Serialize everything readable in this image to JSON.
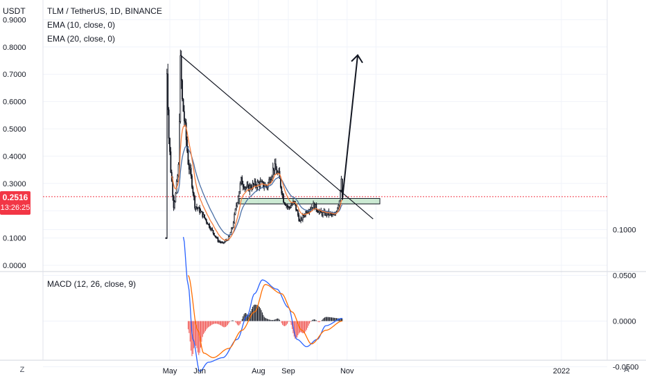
{
  "header": {
    "currency": "USDT",
    "symbol_line": "TLM / TetherUS, 1D, BINANCE",
    "ema10": "EMA (10, close, 0)",
    "ema20": "EMA (20, close, 0)",
    "macd": "MACD (12, 26, close, 9)"
  },
  "price_badge": {
    "price": "0.2516",
    "countdown": "13:26:25",
    "color": "#f23645"
  },
  "axis": {
    "price_ticks": [
      "0.9000",
      "0.8000",
      "0.7000",
      "0.6000",
      "0.5000",
      "0.4000",
      "0.3000",
      "0.1000",
      "0.0000"
    ],
    "macd_ticks": [
      "0.1000",
      "0.0500",
      "0.0000",
      "-0.0500"
    ],
    "months": [
      "May",
      "Jun",
      "Aug",
      "Sep",
      "Nov",
      "2022"
    ],
    "corner_left": "Z",
    "corner_right": "A"
  },
  "colors": {
    "up": "#26a69a",
    "down": "#ef5350",
    "candle": "#131722",
    "ema10": "#f57c3b",
    "ema20": "#4a6fa5",
    "macd_line": "#2962ff",
    "signal_line": "#ff6d00",
    "hist_pos": "#131722",
    "hist_neg": "#ef5350",
    "zone": "#8fd19e",
    "current_price_line": "#f23645"
  },
  "chart_data": [
    {
      "type": "candlestick",
      "title": "TLM / TetherUS, 1D, BINANCE",
      "ylabel": "USDT",
      "ylim": [
        0.0,
        0.93
      ],
      "x_ticks": [
        "May",
        "Jun",
        "Aug",
        "Sep",
        "Nov",
        "2022"
      ],
      "close_series": [
        {
          "x": "Apr 27",
          "y": 0.1
        },
        {
          "x": "Apr 28",
          "y": 0.72
        },
        {
          "x": "Apr 30",
          "y": 0.47
        },
        {
          "x": "May 02",
          "y": 0.35
        },
        {
          "x": "May 05",
          "y": 0.22
        },
        {
          "x": "May 07",
          "y": 0.26
        },
        {
          "x": "May 10",
          "y": 0.36
        },
        {
          "x": "May 12",
          "y": 0.74
        },
        {
          "x": "May 14",
          "y": 0.6
        },
        {
          "x": "May 17",
          "y": 0.5
        },
        {
          "x": "May 20",
          "y": 0.38
        },
        {
          "x": "May 24",
          "y": 0.3
        },
        {
          "x": "May 27",
          "y": 0.22
        },
        {
          "x": "Jun 01",
          "y": 0.2
        },
        {
          "x": "Jun 05",
          "y": 0.18
        },
        {
          "x": "Jun 10",
          "y": 0.15
        },
        {
          "x": "Jun 15",
          "y": 0.12
        },
        {
          "x": "Jun 20",
          "y": 0.09
        },
        {
          "x": "Jun 25",
          "y": 0.08
        },
        {
          "x": "Jul 01",
          "y": 0.1
        },
        {
          "x": "Jul 05",
          "y": 0.14
        },
        {
          "x": "Jul 10",
          "y": 0.24
        },
        {
          "x": "Jul 14",
          "y": 0.31
        },
        {
          "x": "Jul 20",
          "y": 0.28
        },
        {
          "x": "Jul 25",
          "y": 0.29
        },
        {
          "x": "Aug 01",
          "y": 0.3
        },
        {
          "x": "Aug 10",
          "y": 0.29
        },
        {
          "x": "Aug 17",
          "y": 0.36
        },
        {
          "x": "Aug 22",
          "y": 0.33
        },
        {
          "x": "Aug 27",
          "y": 0.24
        },
        {
          "x": "Sep 01",
          "y": 0.21
        },
        {
          "x": "Sep 07",
          "y": 0.23
        },
        {
          "x": "Sep 13",
          "y": 0.16
        },
        {
          "x": "Sep 20",
          "y": 0.2
        },
        {
          "x": "Sep 27",
          "y": 0.22
        },
        {
          "x": "Oct 05",
          "y": 0.19
        },
        {
          "x": "Oct 12",
          "y": 0.19
        },
        {
          "x": "Oct 19",
          "y": 0.18
        },
        {
          "x": "Oct 24",
          "y": 0.24
        },
        {
          "x": "Oct 26",
          "y": 0.33
        },
        {
          "x": "Oct 27",
          "y": 0.2516
        }
      ],
      "annotations": [
        {
          "type": "trendline",
          "from": {
            "x": "May 12",
            "y": 0.77
          },
          "to": {
            "x": "Nov 28",
            "y": 0.17
          }
        },
        {
          "type": "zone",
          "y_range": [
            0.225,
            0.245
          ],
          "x_range": [
            "Jul 12",
            "Dec 05"
          ]
        },
        {
          "type": "arrow",
          "from": {
            "x": "Oct 27",
            "y": 0.24
          },
          "to": {
            "x": "Nov 12",
            "y": 0.77
          }
        },
        {
          "type": "price_line",
          "y": 0.2516
        }
      ]
    },
    {
      "type": "line",
      "title": "MACD (12, 26, close, 9)",
      "ylim": [
        -0.075,
        0.11
      ],
      "series": [
        {
          "values": [
            {
              "x": "May 15",
              "y": 0.092
            },
            {
              "x": "May 20",
              "y": 0.04
            },
            {
              "x": "May 25",
              "y": -0.02
            },
            {
              "x": "Jun 01",
              "y": -0.055
            },
            {
              "x": "Jun 10",
              "y": -0.045
            },
            {
              "x": "Jun 25",
              "y": -0.04
            },
            {
              "x": "Jul 10",
              "y": -0.02
            },
            {
              "x": "Jul 20",
              "y": 0.005
            },
            {
              "x": "Jul 28",
              "y": 0.03
            },
            {
              "x": "Aug 05",
              "y": 0.045
            },
            {
              "x": "Aug 20",
              "y": 0.035
            },
            {
              "x": "Sep 01",
              "y": 0.015
            },
            {
              "x": "Sep 10",
              "y": -0.02
            },
            {
              "x": "Sep 20",
              "y": -0.028
            },
            {
              "x": "Oct 01",
              "y": -0.02
            },
            {
              "x": "Oct 10",
              "y": -0.005
            },
            {
              "x": "Oct 27",
              "y": 0.003
            }
          ]
        },
        {
          "values": [
            {
              "x": "May 20",
              "y": 0.05
            },
            {
              "x": "May 30",
              "y": -0.01
            },
            {
              "x": "Jun 05",
              "y": -0.035
            },
            {
              "x": "Jun 15",
              "y": -0.04
            },
            {
              "x": "Jul 01",
              "y": -0.03
            },
            {
              "x": "Jul 15",
              "y": -0.01
            },
            {
              "x": "Jul 28",
              "y": 0.01
            },
            {
              "x": "Aug 08",
              "y": 0.04
            },
            {
              "x": "Aug 25",
              "y": 0.03
            },
            {
              "x": "Sep 05",
              "y": 0.01
            },
            {
              "x": "Sep 15",
              "y": -0.01
            },
            {
              "x": "Sep 25",
              "y": -0.025
            },
            {
              "x": "Oct 10",
              "y": -0.01
            },
            {
              "x": "Oct 27",
              "y": 0.0
            }
          ]
        }
      ]
    }
  ]
}
